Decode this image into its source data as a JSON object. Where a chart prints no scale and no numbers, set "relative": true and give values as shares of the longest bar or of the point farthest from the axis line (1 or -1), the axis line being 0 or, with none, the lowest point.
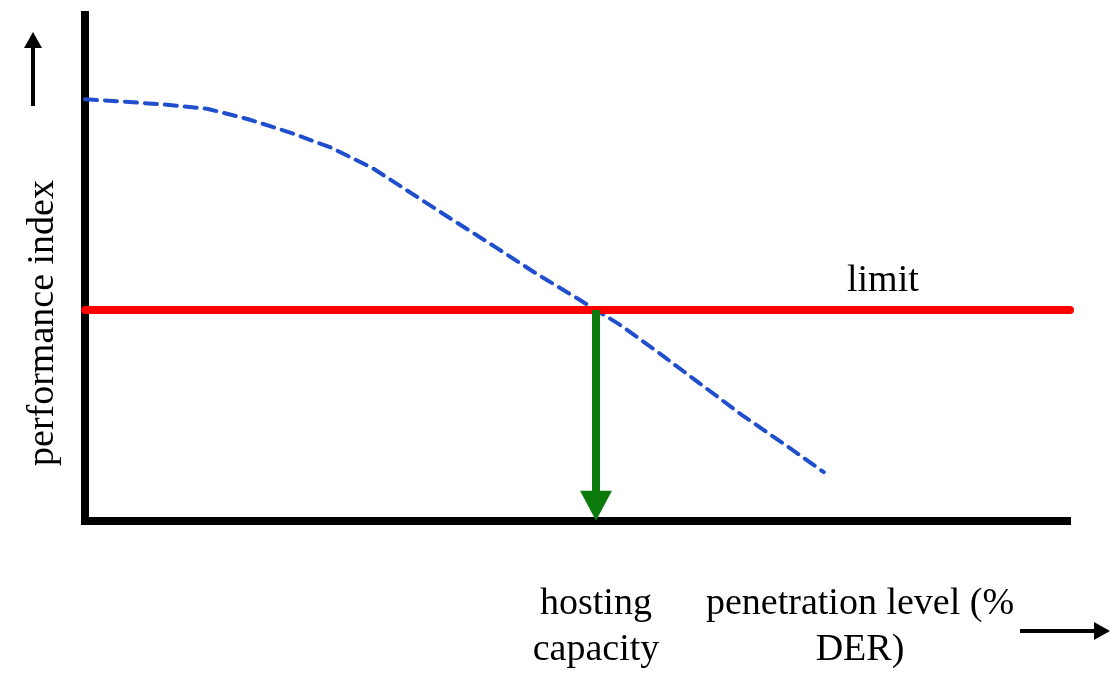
{
  "chart_data": {
    "type": "line",
    "relative": true,
    "xlabel": "penetration level (% DER)",
    "ylabel": "performance index",
    "categories": [
      null,
      null,
      null,
      null,
      null,
      null,
      null,
      null,
      null,
      null,
      null,
      null,
      null,
      null,
      null,
      null,
      null,
      null,
      null,
      null,
      null,
      null,
      null,
      null,
      null
    ],
    "series": [
      {
        "color": "#1f4fcc",
        "values": [
          1,
          0.994,
          0.987,
          0.977,
          0.952,
          0.921,
          0.885,
          0.837,
          0.774,
          0.711,
          0.649,
          0.586,
          0.527,
          0.467,
          0.397,
          0.324,
          0.251,
          0.184,
          0.115,
          null,
          null,
          null,
          null,
          null,
          null
        ]
      }
    ],
    "ref_lines": [
      {
        "axis": "y",
        "value": 0.5,
        "label": "limit",
        "color": "#ff0000"
      }
    ],
    "annotations": [
      "hosting capacity"
    ],
    "line_style": "dashed",
    "marker": "none",
    "grid": false,
    "legend": false
  }
}
